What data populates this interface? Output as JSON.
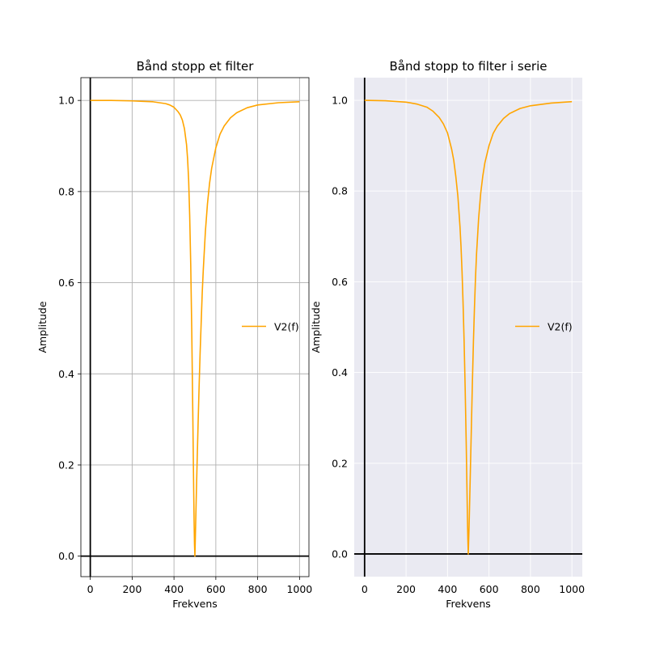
{
  "chart_data": [
    {
      "type": "line",
      "title": "Bånd stopp et filter",
      "xlabel": "Frekvens",
      "ylabel": "Amplitude",
      "xlim": [
        -45,
        1045
      ],
      "ylim": [
        -0.045,
        1.05
      ],
      "xticks": [
        0,
        200,
        400,
        600,
        800,
        1000
      ],
      "yticks": [
        0.0,
        0.2,
        0.4,
        0.6,
        0.8,
        1.0
      ],
      "ytick_labels": [
        "0.0",
        "0.2",
        "0.4",
        "0.6",
        "0.8",
        "1.0"
      ],
      "grid": true,
      "background": "#ffffff",
      "grid_color": "#b0b0b0",
      "legend_position": "center-right",
      "series": [
        {
          "name": "V2(f)",
          "color": "#ffa500",
          "x": [
            0,
            100,
            200,
            250,
            300,
            330,
            360,
            380,
            400,
            420,
            430,
            440,
            450,
            460,
            465,
            470,
            475,
            480,
            485,
            490,
            493,
            496,
            498,
            500,
            502,
            504,
            507,
            510,
            515,
            520,
            525,
            530,
            535,
            540,
            550,
            560,
            570,
            580,
            600,
            620,
            640,
            670,
            700,
            750,
            800,
            900,
            1000
          ],
          "y": [
            1.0,
            1.0,
            0.999,
            0.998,
            0.997,
            0.995,
            0.993,
            0.99,
            0.985,
            0.975,
            0.968,
            0.957,
            0.938,
            0.903,
            0.872,
            0.826,
            0.748,
            0.64,
            0.492,
            0.31,
            0.19,
            0.078,
            0.026,
            0.0,
            0.04,
            0.079,
            0.139,
            0.196,
            0.287,
            0.371,
            0.448,
            0.513,
            0.578,
            0.628,
            0.712,
            0.773,
            0.818,
            0.851,
            0.896,
            0.926,
            0.944,
            0.962,
            0.973,
            0.984,
            0.99,
            0.995,
            0.997
          ]
        }
      ]
    },
    {
      "type": "line",
      "title": "Bånd stopp to filter i serie",
      "xlabel": "Frekvens",
      "ylabel": "Amplitude",
      "xlim": [
        -50,
        1050
      ],
      "ylim": [
        -0.05,
        1.05
      ],
      "xticks": [
        0,
        200,
        400,
        600,
        800,
        1000
      ],
      "yticks": [
        0.0,
        0.2,
        0.4,
        0.6,
        0.8,
        1.0
      ],
      "ytick_labels": [
        "0.0",
        "0.2",
        "0.4",
        "0.6",
        "0.8",
        "1.0"
      ],
      "grid": true,
      "background": "#eaeaf2",
      "grid_color": "#ffffff",
      "legend_position": "center-right",
      "series": [
        {
          "name": "V2(f)",
          "color": "#ffa500",
          "x": [
            0,
            100,
            200,
            250,
            300,
            330,
            360,
            380,
            400,
            420,
            430,
            440,
            450,
            460,
            465,
            470,
            475,
            480,
            485,
            490,
            493,
            496,
            498,
            500,
            502,
            504,
            507,
            510,
            515,
            520,
            525,
            530,
            535,
            540,
            550,
            560,
            570,
            580,
            600,
            620,
            640,
            670,
            700,
            750,
            800,
            900,
            1000
          ],
          "y": [
            1.0,
            0.999,
            0.996,
            0.992,
            0.985,
            0.976,
            0.962,
            0.948,
            0.928,
            0.892,
            0.868,
            0.832,
            0.788,
            0.722,
            0.678,
            0.622,
            0.552,
            0.468,
            0.366,
            0.246,
            0.164,
            0.08,
            0.032,
            0.0,
            0.03,
            0.062,
            0.12,
            0.18,
            0.28,
            0.38,
            0.47,
            0.545,
            0.61,
            0.662,
            0.74,
            0.795,
            0.833,
            0.862,
            0.9,
            0.927,
            0.943,
            0.96,
            0.971,
            0.982,
            0.988,
            0.994,
            0.997
          ]
        }
      ]
    }
  ]
}
